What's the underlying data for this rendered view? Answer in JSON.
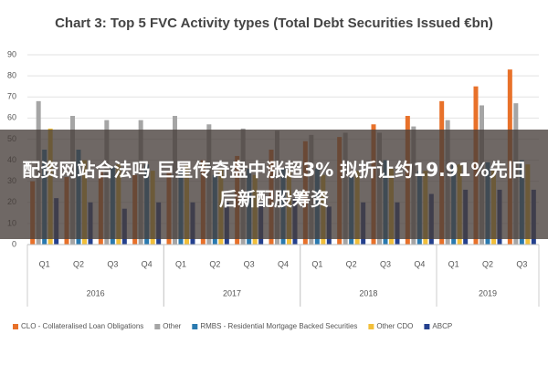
{
  "chart_data": {
    "type": "bar",
    "title": "Chart 3: Top 5 FVC Activity types (Total Debt Securities Issued €bn)",
    "categories": [
      "Q1",
      "Q2",
      "Q3",
      "Q4",
      "Q1",
      "Q2",
      "Q3",
      "Q4",
      "Q1",
      "Q2",
      "Q3",
      "Q4",
      "Q1",
      "Q2",
      "Q3"
    ],
    "category_groups": [
      "2016",
      "2016",
      "2016",
      "2016",
      "2017",
      "2017",
      "2017",
      "2017",
      "2018",
      "2018",
      "2018",
      "2018",
      "2019",
      "2019",
      "2019"
    ],
    "series": [
      {
        "name": "CLO - Collateralised Loan Obligations",
        "color": "#e8712a",
        "values": [
          30,
          32,
          35,
          33,
          35,
          40,
          42,
          45,
          49,
          51,
          57,
          61,
          68,
          75,
          83
        ]
      },
      {
        "name": "Other",
        "color": "#a5a5a5",
        "values": [
          68,
          61,
          59,
          59,
          61,
          57,
          55,
          54,
          52,
          53,
          53,
          56,
          59,
          66,
          67
        ]
      },
      {
        "name": "RMBS - Residential Mortgage Backed Securities",
        "color": "#2a7ab0",
        "values": [
          45,
          45,
          37,
          38,
          35,
          33,
          36,
          36,
          36,
          32,
          40,
          35,
          38,
          39,
          40
        ]
      },
      {
        "name": "Other CDO",
        "color": "#f2bf3a",
        "values": [
          55,
          40,
          38,
          35,
          38,
          36,
          33,
          35,
          33,
          35,
          36,
          35,
          38,
          36,
          38
        ]
      },
      {
        "name": "ABCP",
        "color": "#24408e",
        "values": [
          22,
          20,
          17,
          20,
          20,
          20,
          20,
          22,
          18,
          20,
          20,
          24,
          26,
          26,
          26
        ]
      }
    ],
    "ylim": [
      0,
      90
    ],
    "yticks": [
      0,
      10,
      20,
      30,
      40,
      50,
      60,
      70,
      80,
      90
    ],
    "grid": true,
    "legend": "bottom"
  },
  "overlay": {
    "banner": "配资网站合法吗 巨星传奇盘中涨超3% 拟折让约19.91%先旧后新配股筹资"
  }
}
